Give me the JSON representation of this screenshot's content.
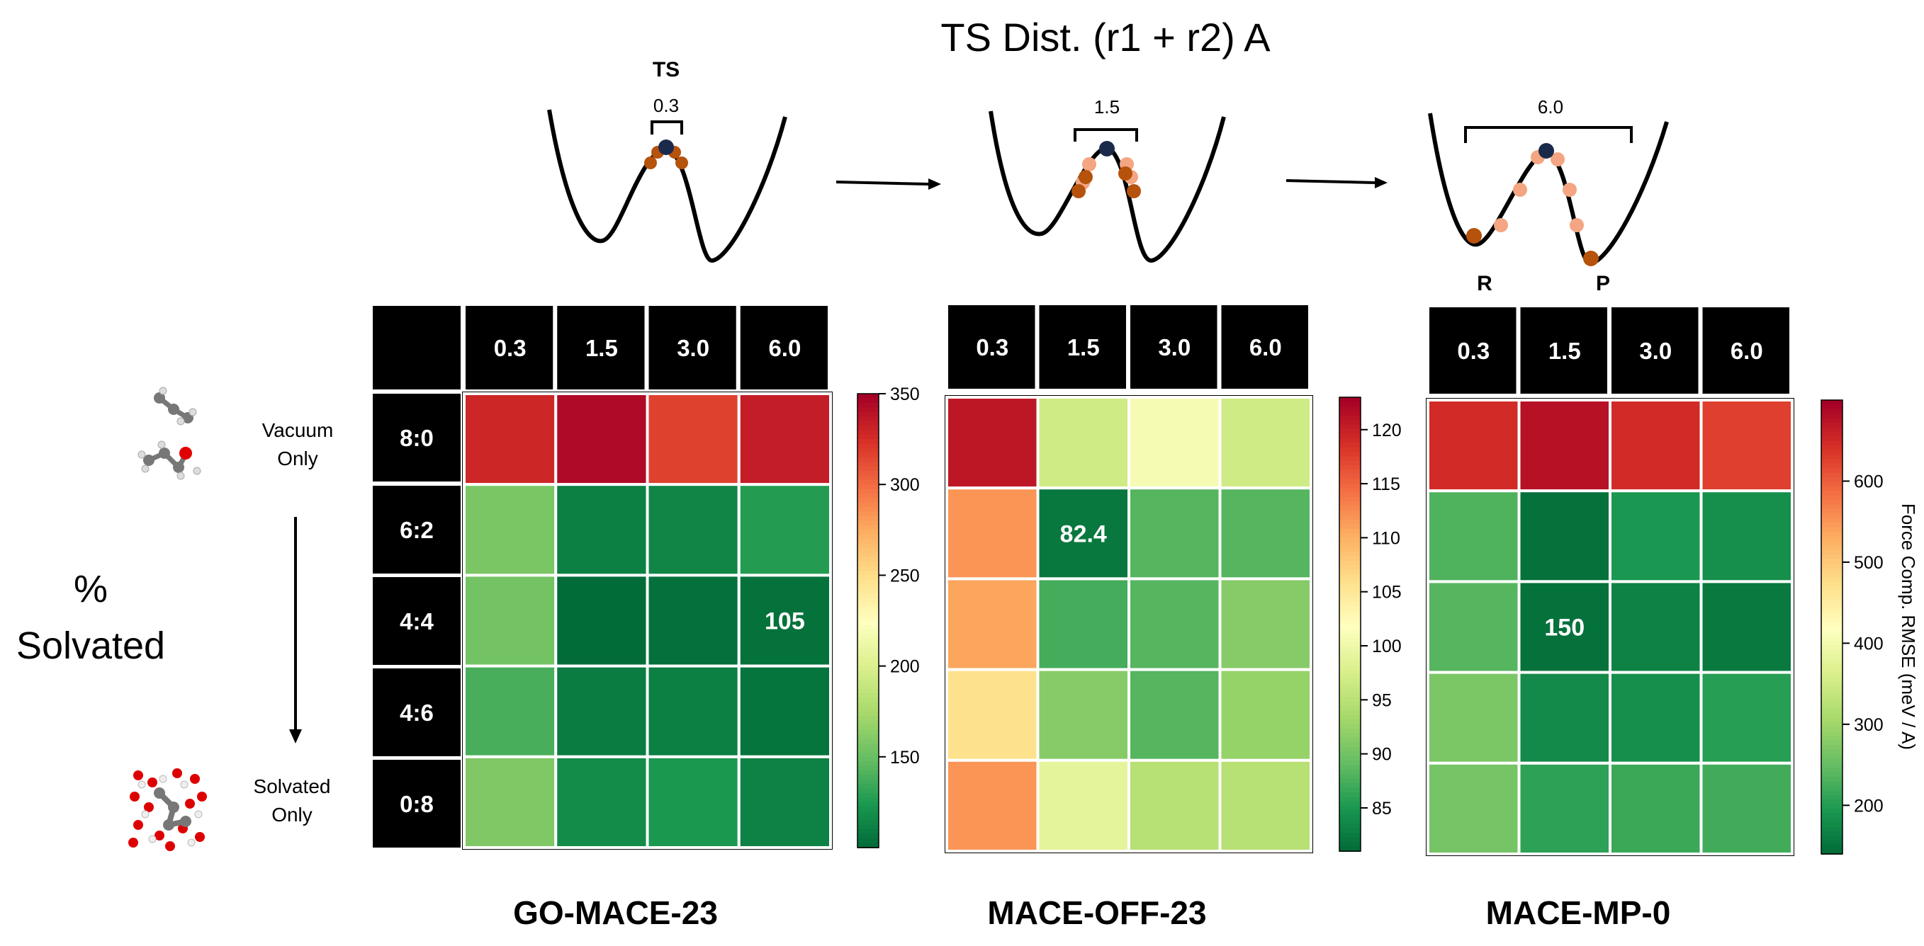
{
  "header": {
    "title": "TS Dist. (r1 + r2) A"
  },
  "row_axis": {
    "title_line1": "%",
    "title_line2": "Solvated",
    "top_label_line1": "Vacuum",
    "top_label_line2": "Only",
    "bottom_label_line1": "Solvated",
    "bottom_label_line2": "Only"
  },
  "potential_diagrams": [
    {
      "label": "0.3",
      "ts_label": "TS"
    },
    {
      "label": "1.5"
    },
    {
      "label": "6.0",
      "reactant_label": "R",
      "product_label": "P"
    }
  ],
  "colorbar_label": "Force Comp. RMSE (meV / A)",
  "colors": {
    "low": "#006837",
    "mid": "#ffffbf",
    "high": "#a50026",
    "point_dark": "#b5520b",
    "point_light": "#f4a582",
    "ts_point": "#1b2a4a"
  },
  "chart_data": [
    {
      "type": "heatmap",
      "title": "GO-MACE-23",
      "columns": [
        "0.3",
        "1.5",
        "3.0",
        "6.0"
      ],
      "rows": [
        "8:0",
        "6:2",
        "4:4",
        "4:6",
        "0:8"
      ],
      "values": [
        [
          330,
          345,
          318,
          335
        ],
        [
          158,
          112,
          115,
          128
        ],
        [
          155,
          102,
          104,
          105
        ],
        [
          140,
          110,
          112,
          106
        ],
        [
          160,
          118,
          125,
          113
        ]
      ],
      "annotations": [
        {
          "row": 2,
          "col": 3,
          "text": "105"
        }
      ],
      "color_range": [
        100,
        350
      ],
      "colorbar_ticks": [
        150,
        200,
        250,
        300,
        350
      ]
    },
    {
      "type": "heatmap",
      "title": "MACE-OFF-23",
      "columns": [
        "0.3",
        "1.5",
        "3.0",
        "6.0"
      ],
      "rows": [
        "8:0",
        "6:2",
        "4:4",
        "4:6",
        "0:8"
      ],
      "values": [
        [
          121,
          97,
          101,
          97
        ],
        [
          112,
          82.4,
          88.5,
          88.5
        ],
        [
          111,
          87.5,
          88.5,
          91.5
        ],
        [
          106,
          91.5,
          88.5,
          92.5
        ],
        [
          112,
          99,
          95,
          95
        ]
      ],
      "annotations": [
        {
          "row": 1,
          "col": 1,
          "text": "82.4"
        }
      ],
      "color_range": [
        81,
        123
      ],
      "colorbar_ticks": [
        85,
        90,
        95,
        100,
        105,
        110,
        115,
        120
      ]
    },
    {
      "type": "heatmap",
      "title": "MACE-MP-0",
      "columns": [
        "0.3",
        "1.5",
        "3.0",
        "6.0"
      ],
      "rows": [
        "8:0",
        "6:2",
        "4:4",
        "4:6",
        "0:8"
      ],
      "values": [
        [
          650,
          680,
          650,
          630
        ],
        [
          235,
          150,
          195,
          185
        ],
        [
          240,
          150,
          170,
          160
        ],
        [
          270,
          180,
          185,
          205
        ],
        [
          265,
          210,
          220,
          225
        ]
      ],
      "annotations": [
        {
          "row": 2,
          "col": 1,
          "text": "150"
        }
      ],
      "color_range": [
        140,
        700
      ],
      "colorbar_ticks": [
        200,
        300,
        400,
        500,
        600
      ]
    }
  ]
}
